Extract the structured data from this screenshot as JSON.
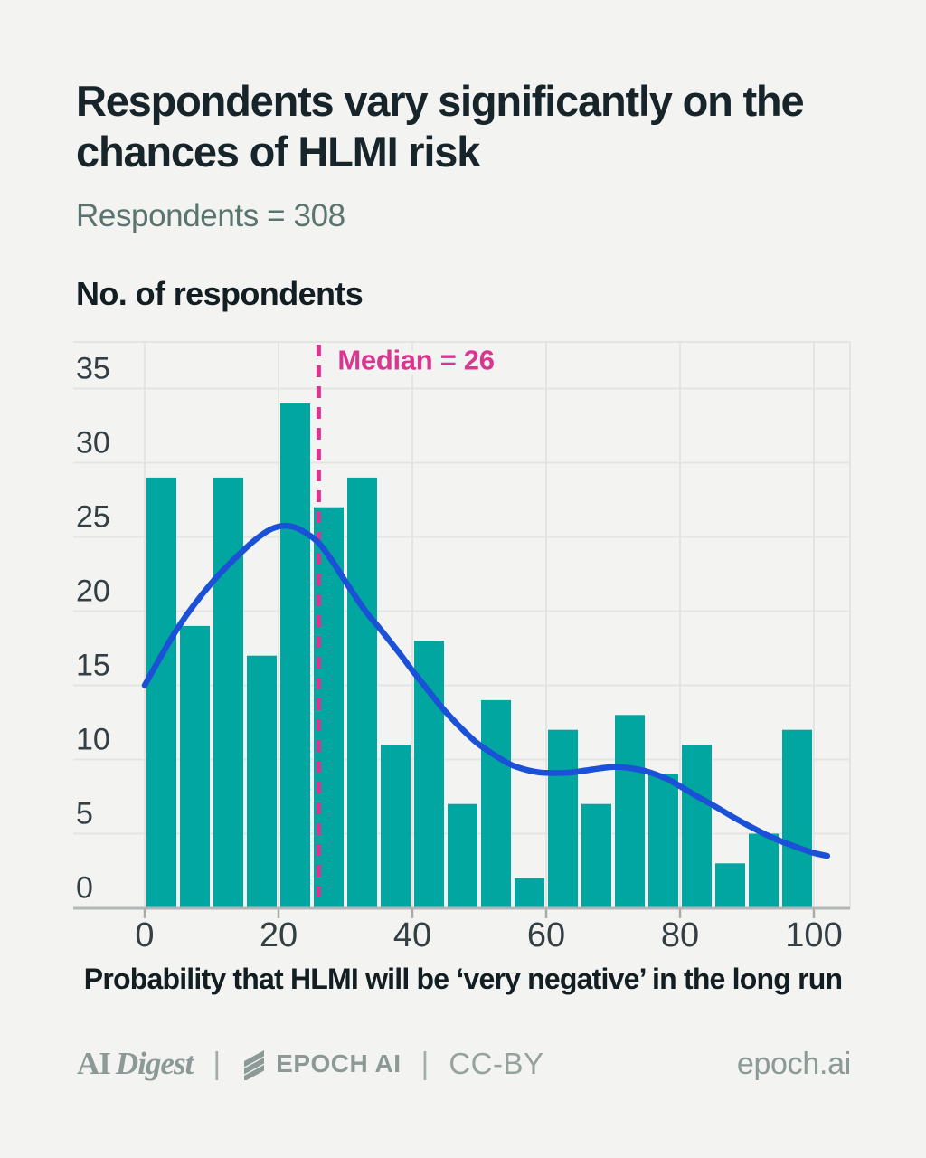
{
  "header": {
    "title_line1": "Respondents vary significantly on the",
    "title_line2": "chances of HLMI risk",
    "subtitle": "Respondents = 308"
  },
  "chart_data": {
    "type": "bar",
    "title": "Respondents vary significantly on the chances of HLMI risk",
    "subtitle": "Respondents = 308",
    "ylabel": "No. of respondents",
    "xlabel": "Probability that HLMI will be ‘very negative’ in the long run",
    "respondents_total": 308,
    "bin_width": 5,
    "bin_starts": [
      0,
      5,
      10,
      15,
      20,
      25,
      30,
      35,
      40,
      45,
      50,
      55,
      60,
      65,
      70,
      75,
      80,
      85,
      90,
      95
    ],
    "counts": [
      29,
      19,
      29,
      17,
      34,
      27,
      29,
      11,
      18,
      7,
      14,
      2,
      12,
      7,
      13,
      9,
      11,
      3,
      5,
      12
    ],
    "x_ticks": [
      0,
      20,
      40,
      60,
      80,
      100
    ],
    "y_ticks": [
      0,
      5,
      10,
      15,
      20,
      25,
      30,
      35
    ],
    "xlim": [
      0,
      100
    ],
    "ylim": [
      0,
      38
    ],
    "grid": true,
    "legend": "none",
    "median": {
      "value": 26,
      "label": "Median = 26"
    },
    "density_curve": [
      [
        0,
        15
      ],
      [
        5,
        18.9
      ],
      [
        10,
        21.9
      ],
      [
        15,
        24.2
      ],
      [
        18,
        25.3
      ],
      [
        20,
        25.7
      ],
      [
        22,
        25.7
      ],
      [
        24,
        25.3
      ],
      [
        26,
        24.6
      ],
      [
        28,
        23.4
      ],
      [
        30,
        22
      ],
      [
        33,
        20
      ],
      [
        35,
        18.9
      ],
      [
        38,
        17.2
      ],
      [
        40,
        16
      ],
      [
        43,
        14.3
      ],
      [
        45,
        13.2
      ],
      [
        48,
        11.8
      ],
      [
        50,
        11
      ],
      [
        53,
        10.1
      ],
      [
        55,
        9.6
      ],
      [
        58,
        9.2
      ],
      [
        60,
        9.1
      ],
      [
        63,
        9.1
      ],
      [
        65,
        9.2
      ],
      [
        68,
        9.4
      ],
      [
        70,
        9.5
      ],
      [
        72,
        9.45
      ],
      [
        75,
        9.2
      ],
      [
        78,
        8.7
      ],
      [
        80,
        8.2
      ],
      [
        83,
        7.4
      ],
      [
        85,
        6.9
      ],
      [
        88,
        6.1
      ],
      [
        90,
        5.6
      ],
      [
        93,
        4.9
      ],
      [
        95,
        4.5
      ],
      [
        98,
        4
      ],
      [
        100,
        3.7
      ],
      [
        102,
        3.5
      ]
    ],
    "colors": {
      "bar": "#02a6a1",
      "curve": "#1b51d7",
      "median": "#d93691",
      "grid": "#e4e4e3",
      "axis": "#b3b6b5",
      "tick": "#a7acab",
      "tick_text": "#333f42",
      "background": "#f3f3f2"
    }
  },
  "footer": {
    "brand_ai": "AI",
    "brand_digest": "Digest",
    "separator": "|",
    "epoch_label": "EPOCH AI",
    "license_label": "CC-BY",
    "site_label": "epoch.ai"
  }
}
